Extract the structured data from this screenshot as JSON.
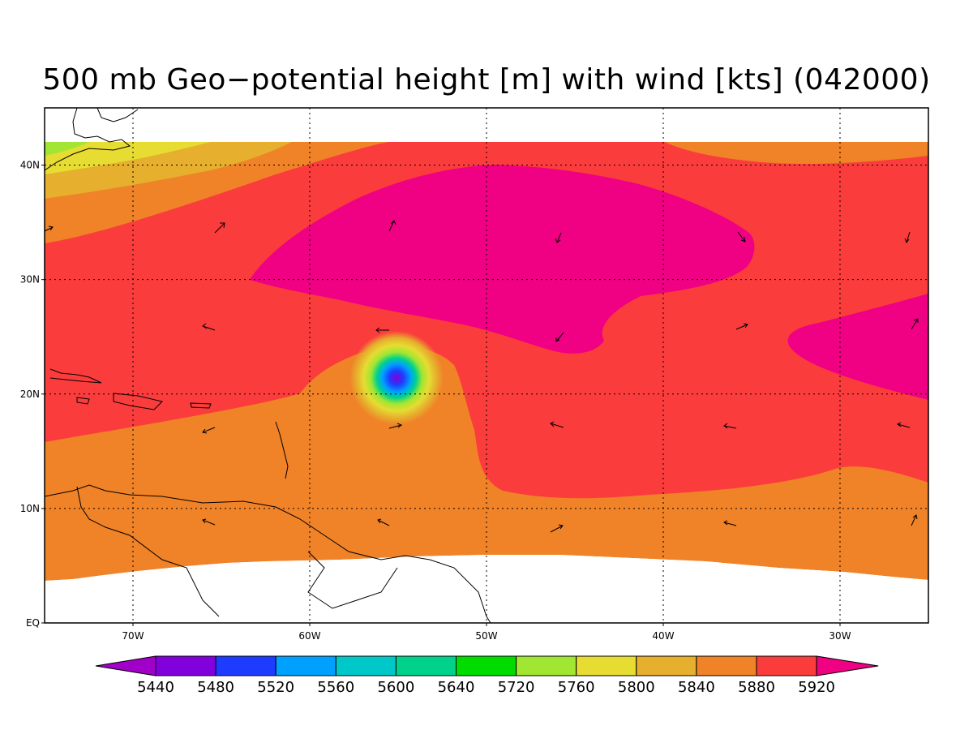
{
  "title": "500 mb Geo−potential height [m] with wind [kts] (042000)",
  "map": {
    "lon_range": [
      -75,
      -25
    ],
    "lat_range": [
      0,
      45
    ],
    "lat_ticks": [
      {
        "value": 40,
        "label": "40N"
      },
      {
        "value": 30,
        "label": "30N"
      },
      {
        "value": 20,
        "label": "20N"
      },
      {
        "value": 10,
        "label": "10N"
      },
      {
        "value": 0,
        "label": "EQ"
      }
    ],
    "lon_ticks": [
      {
        "value": -70,
        "label": "70W"
      },
      {
        "value": -60,
        "label": "60W"
      },
      {
        "value": -50,
        "label": "50W"
      },
      {
        "value": -40,
        "label": "40W"
      },
      {
        "value": -30,
        "label": "30W"
      }
    ],
    "grid": "dotted"
  },
  "colorbar": {
    "levels": [
      "5440",
      "5480",
      "5520",
      "5560",
      "5600",
      "5640",
      "5720",
      "5760",
      "5800",
      "5840",
      "5880",
      "5920"
    ],
    "colors": [
      "#a000c8",
      "#8200dc",
      "#1e3cff",
      "#00a0ff",
      "#00c8c8",
      "#00d28c",
      "#00dc00",
      "#a0e632",
      "#e6dc32",
      "#e6af2d",
      "#f08228",
      "#fa3c3c",
      "#f00082"
    ]
  },
  "field_colors": {
    "h5840": "#e6af2d",
    "h5880": "#f08228",
    "h5920": "#fa3c3c",
    "h5960": "#f00082",
    "h5760": "#a0e632",
    "h5800": "#e6dc32"
  }
}
